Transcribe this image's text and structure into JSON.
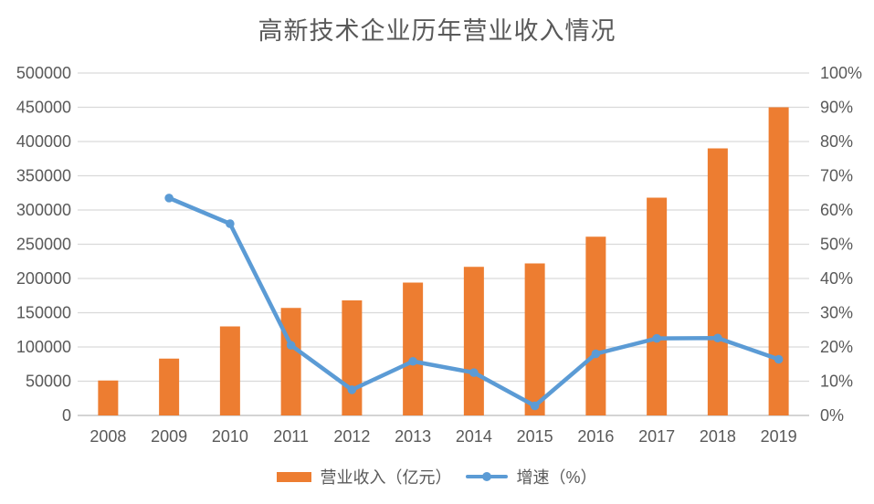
{
  "chart_data": {
    "type": "combo_bar_line",
    "title": "高新技术企业历年营业收入情况",
    "categories": [
      "2008",
      "2009",
      "2010",
      "2011",
      "2012",
      "2013",
      "2014",
      "2015",
      "2016",
      "2017",
      "2018",
      "2019"
    ],
    "series": [
      {
        "name": "营业收入（亿元）",
        "type": "bar",
        "axis": "left",
        "color": "#ED7D31",
        "values": [
          51000,
          83000,
          130000,
          157000,
          168000,
          194000,
          217000,
          222000,
          261000,
          318000,
          390000,
          450000
        ]
      },
      {
        "name": "增速（%）",
        "type": "line",
        "axis": "right",
        "color": "#5B9BD5",
        "values": [
          null,
          63.5,
          56.0,
          20.5,
          7.5,
          15.8,
          12.5,
          2.8,
          18.0,
          22.5,
          22.6,
          16.4
        ]
      }
    ],
    "left_axis": {
      "min": 0,
      "max": 500000,
      "step": 50000,
      "tick_labels": [
        "0",
        "50000",
        "100000",
        "150000",
        "200000",
        "250000",
        "300000",
        "350000",
        "400000",
        "450000",
        "500000"
      ]
    },
    "right_axis": {
      "min": 0,
      "max": 100,
      "step": 10,
      "tick_labels": [
        "0%",
        "10%",
        "20%",
        "30%",
        "40%",
        "50%",
        "60%",
        "70%",
        "80%",
        "90%",
        "100%"
      ]
    },
    "grid": true,
    "legend_position": "bottom",
    "colors": {
      "grid": "#D9D9D9",
      "axis_line": "#BFBFBF",
      "label_text": "#595959",
      "title_text": "#595959"
    }
  }
}
